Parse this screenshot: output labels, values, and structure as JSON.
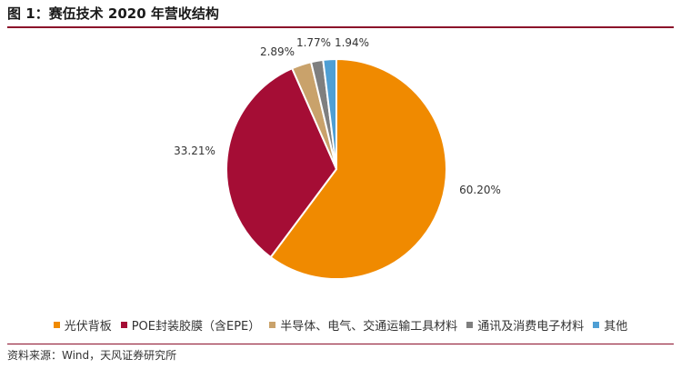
{
  "header": {
    "title": "图 1：赛伍技术 2020 年营收结构"
  },
  "chart_data": {
    "type": "pie",
    "title": "",
    "start_angle_deg": 0,
    "direction": "clockwise",
    "slices": [
      {
        "name": "光伏背板",
        "value": 60.2,
        "label": "60.20%",
        "color": "#f08a00"
      },
      {
        "name": "POE封装胶膜（含EPE）",
        "value": 33.21,
        "label": "33.21%",
        "color": "#a50d35"
      },
      {
        "name": "半导体、电气、交通运输工具材料",
        "value": 2.89,
        "label": "2.89%",
        "color": "#c9a26b"
      },
      {
        "name": "通讯及消费电子材料",
        "value": 1.77,
        "label": "1.77%",
        "color": "#7f7f7f"
      },
      {
        "name": "其他",
        "value": 1.94,
        "label": "1.94%",
        "color": "#4f9fd4"
      }
    ],
    "legend_position": "bottom"
  },
  "footer": {
    "source": "资料来源：Wind，天风证券研究所"
  }
}
